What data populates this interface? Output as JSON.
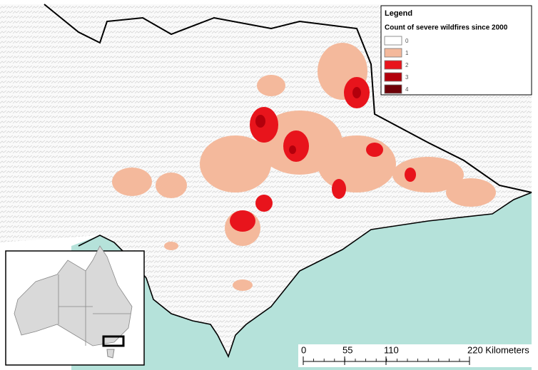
{
  "legend": {
    "title": "Legend",
    "subtitle": "Count of severe wildfires since 2000",
    "items": [
      {
        "label": "0",
        "color": "#ffffff"
      },
      {
        "label": "1",
        "color": "#f4b99c"
      },
      {
        "label": "2",
        "color": "#e8141c"
      },
      {
        "label": "3",
        "color": "#b3000c"
      },
      {
        "label": "4",
        "color": "#6e0008"
      }
    ]
  },
  "scale_bar": {
    "labels": [
      "0",
      "55",
      "110",
      "220 Kilometers"
    ]
  }
}
